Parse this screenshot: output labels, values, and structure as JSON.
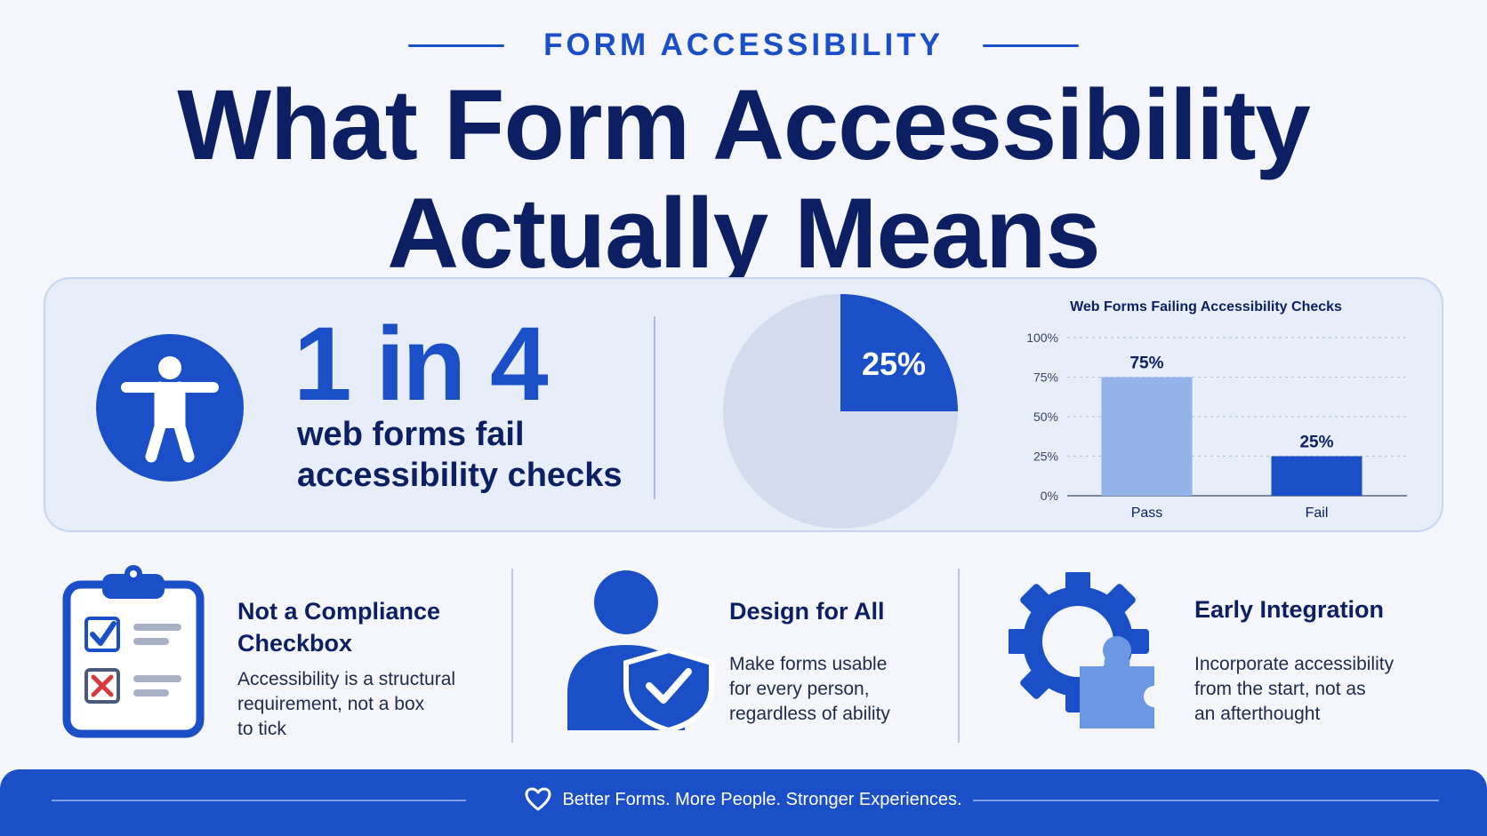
{
  "header": {
    "eyebrow": "FORM ACCESSIBILITY",
    "title_line1": "What Form Accessibility",
    "title_line2": "Actually Means"
  },
  "stat": {
    "big": "1 in 4",
    "caption_line1": "web forms fail",
    "caption_line2": "accessibility checks",
    "icon": "accessibility-person-icon"
  },
  "pie": {
    "label": "25%",
    "fraction": 0.25
  },
  "chart_data": {
    "type": "bar",
    "title": "Web Forms Failing Accessibility Checks",
    "categories": [
      "Pass",
      "Fail"
    ],
    "values": [
      75,
      25
    ],
    "value_labels": [
      "75%",
      "25%"
    ],
    "ylim": [
      0,
      100
    ],
    "yticks": [
      "0%",
      "25%",
      "50%",
      "75%",
      "100%"
    ],
    "grid": true,
    "colors": [
      "#93b2e8",
      "#1a4fc8"
    ]
  },
  "features": [
    {
      "icon": "clipboard-checklist-icon",
      "title_line1": "Not a Compliance",
      "title_line2": "Checkbox",
      "desc_line1": "Accessibility is a structural",
      "desc_line2": "requirement, not a box",
      "desc_line3": "to tick"
    },
    {
      "icon": "person-shield-icon",
      "title_line1": "Design for All",
      "desc_line1": "Make forms usable",
      "desc_line2": "for every person,",
      "desc_line3": "regardless of ability"
    },
    {
      "icon": "gear-puzzle-icon",
      "title_line1": "Early Integration",
      "desc_line1": "Incorporate accessibility",
      "desc_line2": "from the start, not as",
      "desc_line3": "an afterthought"
    }
  ],
  "footer": {
    "icon": "heart-icon",
    "text": "Better Forms. More People. Stronger Experiences."
  },
  "colors": {
    "primary": "#1a4fc8",
    "navy": "#0c1f63",
    "light_blue": "#93b2e8",
    "pie_rest": "#d3dcec"
  }
}
